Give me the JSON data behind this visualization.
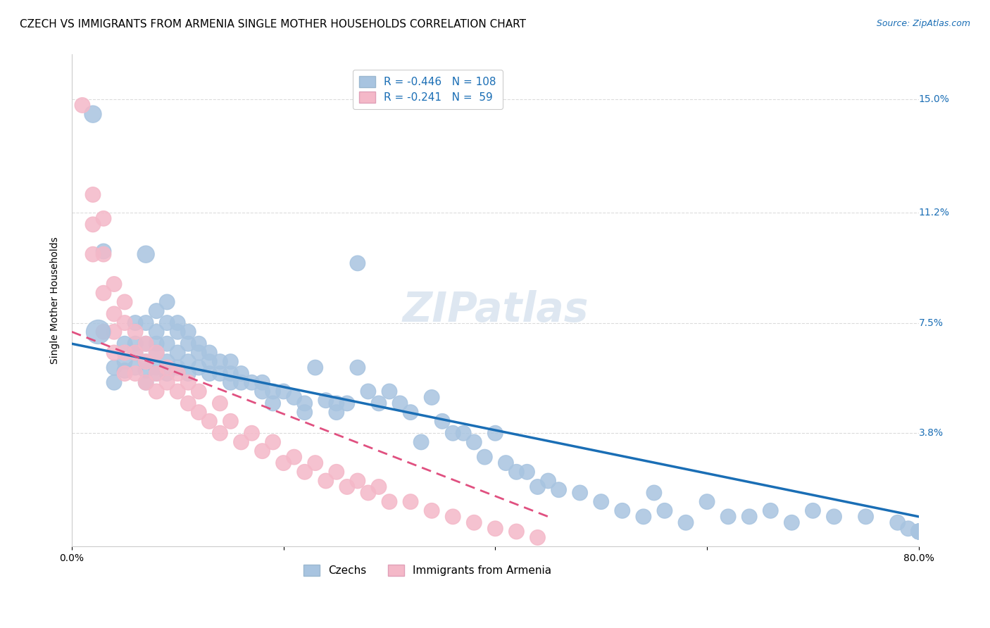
{
  "title": "CZECH VS IMMIGRANTS FROM ARMENIA SINGLE MOTHER HOUSEHOLDS CORRELATION CHART",
  "source": "Source: ZipAtlas.com",
  "ylabel": "Single Mother Households",
  "xlabel": "",
  "xlim": [
    0,
    0.8
  ],
  "ylim": [
    0,
    0.165
  ],
  "yticks": [
    0,
    0.038,
    0.075,
    0.112,
    0.15
  ],
  "ytick_labels": [
    "",
    "3.8%",
    "7.5%",
    "11.2%",
    "15.0%"
  ],
  "xticks": [
    0,
    0.2,
    0.4,
    0.6,
    0.8
  ],
  "xtick_labels": [
    "0.0%",
    "",
    "",
    "",
    "80.0%"
  ],
  "czech_R": -0.446,
  "czech_N": 108,
  "armenia_R": -0.241,
  "armenia_N": 59,
  "czech_color": "#a8c4e0",
  "czech_line_color": "#1a6eb5",
  "armenia_color": "#f4b8c8",
  "armenia_line_color": "#e05080",
  "watermark": "ZIPatlas",
  "legend_czech_label": "R = -0.446   N = 108",
  "legend_armenia_label": "R = -0.241   N =  59",
  "czech_x": [
    0.02,
    0.03,
    0.04,
    0.04,
    0.05,
    0.05,
    0.05,
    0.06,
    0.06,
    0.06,
    0.06,
    0.07,
    0.07,
    0.07,
    0.07,
    0.07,
    0.07,
    0.08,
    0.08,
    0.08,
    0.08,
    0.08,
    0.08,
    0.09,
    0.09,
    0.09,
    0.09,
    0.09,
    0.1,
    0.1,
    0.1,
    0.1,
    0.11,
    0.11,
    0.11,
    0.11,
    0.12,
    0.12,
    0.12,
    0.13,
    0.13,
    0.13,
    0.14,
    0.14,
    0.15,
    0.15,
    0.15,
    0.16,
    0.16,
    0.17,
    0.18,
    0.18,
    0.19,
    0.19,
    0.2,
    0.21,
    0.22,
    0.22,
    0.23,
    0.24,
    0.25,
    0.25,
    0.26,
    0.27,
    0.27,
    0.28,
    0.29,
    0.3,
    0.31,
    0.32,
    0.33,
    0.34,
    0.35,
    0.36,
    0.37,
    0.38,
    0.39,
    0.4,
    0.41,
    0.42,
    0.43,
    0.44,
    0.45,
    0.46,
    0.48,
    0.5,
    0.52,
    0.54,
    0.55,
    0.56,
    0.58,
    0.6,
    0.62,
    0.64,
    0.66,
    0.68,
    0.7,
    0.72,
    0.75,
    0.78,
    0.79,
    0.8,
    0.8,
    0.8,
    0.8,
    0.8,
    0.8,
    0.8,
    0.8
  ],
  "czech_y": [
    0.145,
    0.099,
    0.06,
    0.055,
    0.068,
    0.062,
    0.059,
    0.075,
    0.068,
    0.065,
    0.06,
    0.098,
    0.075,
    0.068,
    0.062,
    0.059,
    0.055,
    0.079,
    0.072,
    0.068,
    0.065,
    0.06,
    0.058,
    0.082,
    0.075,
    0.068,
    0.062,
    0.058,
    0.075,
    0.072,
    0.065,
    0.06,
    0.072,
    0.068,
    0.062,
    0.058,
    0.068,
    0.065,
    0.06,
    0.065,
    0.062,
    0.058,
    0.062,
    0.058,
    0.062,
    0.058,
    0.055,
    0.058,
    0.055,
    0.055,
    0.055,
    0.052,
    0.052,
    0.048,
    0.052,
    0.05,
    0.048,
    0.045,
    0.06,
    0.049,
    0.048,
    0.045,
    0.048,
    0.095,
    0.06,
    0.052,
    0.048,
    0.052,
    0.048,
    0.045,
    0.035,
    0.05,
    0.042,
    0.038,
    0.038,
    0.035,
    0.03,
    0.038,
    0.028,
    0.025,
    0.025,
    0.02,
    0.022,
    0.019,
    0.018,
    0.015,
    0.012,
    0.01,
    0.018,
    0.012,
    0.008,
    0.015,
    0.01,
    0.01,
    0.012,
    0.008,
    0.012,
    0.01,
    0.01,
    0.008,
    0.006,
    0.005,
    0.005,
    0.005,
    0.005,
    0.005,
    0.005,
    0.005,
    0.005
  ],
  "czech_sizes": [
    15,
    12,
    12,
    12,
    12,
    12,
    12,
    12,
    12,
    12,
    12,
    15,
    12,
    12,
    12,
    12,
    12,
    12,
    12,
    12,
    12,
    12,
    12,
    12,
    12,
    12,
    12,
    12,
    12,
    12,
    12,
    12,
    12,
    12,
    12,
    12,
    12,
    12,
    12,
    12,
    12,
    12,
    12,
    12,
    12,
    12,
    12,
    12,
    12,
    12,
    12,
    12,
    12,
    12,
    12,
    12,
    12,
    12,
    12,
    12,
    12,
    12,
    12,
    12,
    12,
    12,
    12,
    12,
    12,
    12,
    12,
    12,
    12,
    12,
    12,
    12,
    12,
    12,
    12,
    12,
    12,
    12,
    12,
    12,
    12,
    12,
    12,
    12,
    12,
    12,
    12,
    12,
    12,
    12,
    12,
    12,
    12,
    12,
    12,
    12,
    12,
    12,
    12,
    12,
    12,
    12,
    12,
    12,
    12
  ],
  "armenia_x": [
    0.01,
    0.02,
    0.02,
    0.02,
    0.03,
    0.03,
    0.03,
    0.03,
    0.04,
    0.04,
    0.04,
    0.04,
    0.05,
    0.05,
    0.05,
    0.05,
    0.06,
    0.06,
    0.06,
    0.07,
    0.07,
    0.07,
    0.08,
    0.08,
    0.08,
    0.09,
    0.09,
    0.1,
    0.1,
    0.11,
    0.11,
    0.12,
    0.12,
    0.13,
    0.14,
    0.14,
    0.15,
    0.16,
    0.17,
    0.18,
    0.19,
    0.2,
    0.21,
    0.22,
    0.23,
    0.24,
    0.25,
    0.26,
    0.27,
    0.28,
    0.29,
    0.3,
    0.32,
    0.34,
    0.36,
    0.38,
    0.4,
    0.42,
    0.44
  ],
  "armenia_y": [
    0.148,
    0.118,
    0.108,
    0.098,
    0.11,
    0.098,
    0.085,
    0.072,
    0.088,
    0.078,
    0.072,
    0.065,
    0.082,
    0.075,
    0.065,
    0.058,
    0.072,
    0.065,
    0.058,
    0.068,
    0.062,
    0.055,
    0.065,
    0.058,
    0.052,
    0.06,
    0.055,
    0.058,
    0.052,
    0.055,
    0.048,
    0.052,
    0.045,
    0.042,
    0.048,
    0.038,
    0.042,
    0.035,
    0.038,
    0.032,
    0.035,
    0.028,
    0.03,
    0.025,
    0.028,
    0.022,
    0.025,
    0.02,
    0.022,
    0.018,
    0.02,
    0.015,
    0.015,
    0.012,
    0.01,
    0.008,
    0.006,
    0.005,
    0.003
  ],
  "armenia_sizes": [
    12,
    12,
    12,
    12,
    12,
    12,
    12,
    12,
    12,
    12,
    12,
    12,
    12,
    12,
    12,
    12,
    12,
    12,
    12,
    12,
    12,
    12,
    12,
    12,
    12,
    12,
    12,
    12,
    12,
    12,
    12,
    12,
    12,
    12,
    12,
    12,
    12,
    12,
    12,
    12,
    12,
    12,
    12,
    12,
    12,
    12,
    12,
    12,
    12,
    12,
    12,
    12,
    12,
    12,
    12,
    12,
    12,
    12,
    12
  ],
  "background_color": "#ffffff",
  "grid_color": "#cccccc",
  "title_fontsize": 11,
  "label_fontsize": 10,
  "tick_fontsize": 10,
  "legend_fontsize": 11,
  "source_fontsize": 9,
  "czech_trendline_x": [
    0.0,
    0.8
  ],
  "czech_trendline_y": [
    0.068,
    0.01
  ],
  "armenia_trendline_x": [
    0.0,
    0.45
  ],
  "armenia_trendline_y": [
    0.072,
    0.01
  ]
}
